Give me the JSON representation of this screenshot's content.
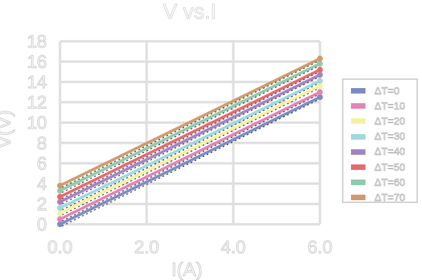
{
  "chart": {
    "title": "V vs.I",
    "xlabel": "I(A)",
    "ylabel": "V(V)"
  },
  "chart_data": {
    "type": "line",
    "title": "V vs.I",
    "xlabel": "I(A)",
    "ylabel": "V(V)",
    "xlim": [
      0,
      6
    ],
    "ylim": [
      0,
      18
    ],
    "xticks": [
      0,
      2,
      4,
      6
    ],
    "xtick_labels": [
      "0.0",
      "2.0",
      "4.0",
      "6.0"
    ],
    "yticks": [
      0,
      2,
      4,
      6,
      8,
      10,
      12,
      14,
      16,
      18
    ],
    "ytick_labels": [
      "0",
      "2",
      "4",
      "6",
      "8",
      "10",
      "12",
      "14",
      "16",
      "18"
    ],
    "grid": true,
    "legend_position": "right",
    "marker": "circle-at-endpoints",
    "trendline_style": "black dotted line behind each series",
    "series": [
      {
        "name": "ΔT=0",
        "color": "#7b8cc4",
        "x": [
          0,
          6
        ],
        "y": [
          0.0,
          12.5
        ]
      },
      {
        "name": "ΔT=10",
        "color": "#e583b5",
        "x": [
          0,
          6
        ],
        "y": [
          0.5,
          13.0
        ]
      },
      {
        "name": "ΔT=20",
        "color": "#f5f1a0",
        "x": [
          0,
          6
        ],
        "y": [
          1.1,
          13.6
        ]
      },
      {
        "name": "ΔT=30",
        "color": "#9ed8df",
        "x": [
          0,
          6
        ],
        "y": [
          1.6,
          14.1
        ]
      },
      {
        "name": "ΔT=40",
        "color": "#a383c2",
        "x": [
          0,
          6
        ],
        "y": [
          2.2,
          14.7
        ]
      },
      {
        "name": "ΔT=50",
        "color": "#e66a6e",
        "x": [
          0,
          6
        ],
        "y": [
          2.7,
          15.2
        ]
      },
      {
        "name": "ΔT=60",
        "color": "#8fcbab",
        "x": [
          0,
          6
        ],
        "y": [
          3.3,
          15.8
        ]
      },
      {
        "name": "ΔT=70",
        "color": "#d39a6c",
        "x": [
          0,
          6
        ],
        "y": [
          3.8,
          16.3
        ]
      }
    ]
  },
  "colors": {
    "grid": "#dfdfdf",
    "tick_text_outline": "#c9c9c9",
    "title_text_outline": "#d4d4d4",
    "legend_text_outline": "#b9b9b9",
    "legend_border": "#cfcfcf",
    "trendline": "#2a2a2a",
    "background": "#ffffff"
  }
}
